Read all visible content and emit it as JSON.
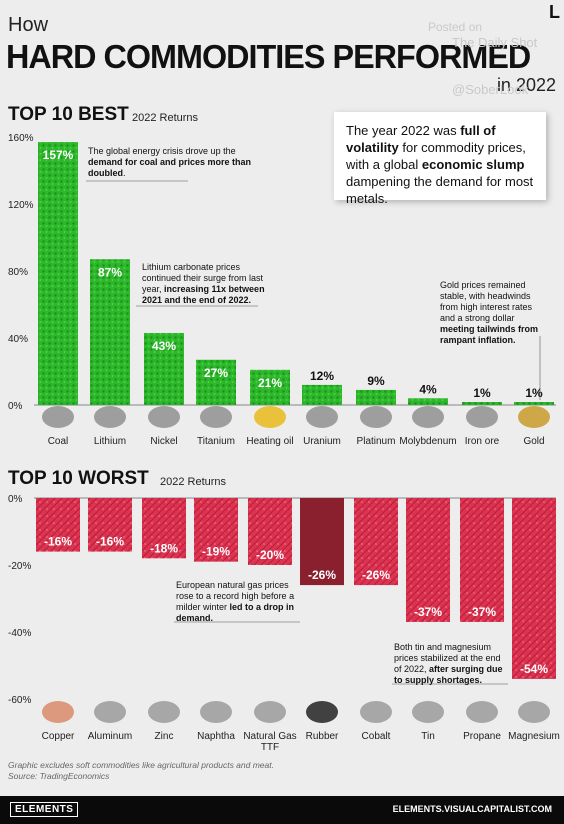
{
  "header": {
    "how": "How",
    "title": "HARD COMMODITIES PERFORMED",
    "subtitle": "in 2022",
    "watermark_posted": "Posted on",
    "watermark_source": "The Daily Shot",
    "watermark_handle": "@SoberLook",
    "corner_mark": "L"
  },
  "callout": {
    "text_1": "The year 2022 was ",
    "bold_1": "full of volatility",
    "text_2": " for commodity prices, with a global ",
    "bold_2": "economic slump",
    "text_3": " dampening the demand for most metals."
  },
  "chart_data": [
    {
      "type": "bar",
      "title": "TOP 10 BEST",
      "subtitle": "2022 Returns",
      "categories": [
        "Coal",
        "Lithium",
        "Nickel",
        "Titanium",
        "Heating oil",
        "Uranium",
        "Platinum",
        "Molybdenum",
        "Iron ore",
        "Gold"
      ],
      "values": [
        157,
        87,
        43,
        27,
        21,
        12,
        9,
        4,
        1,
        1
      ],
      "value_labels": [
        "157%",
        "87%",
        "43%",
        "27%",
        "21%",
        "12%",
        "9%",
        "4%",
        "1%",
        "1%"
      ],
      "ylim": [
        0,
        160
      ],
      "yticks": [
        "0%",
        "40%",
        "80%",
        "120%",
        "160%"
      ],
      "color": "#2fbf2a",
      "grid": false
    },
    {
      "type": "bar",
      "title": "TOP 10 WORST",
      "subtitle": "2022 Returns",
      "categories": [
        "Copper",
        "Aluminum",
        "Zinc",
        "Naphtha",
        "Natural Gas TTF",
        "Rubber",
        "Cobalt",
        "Tin",
        "Propane",
        "Magnesium"
      ],
      "values": [
        -16,
        -16,
        -18,
        -19,
        -20,
        -26,
        -26,
        -37,
        -37,
        -54
      ],
      "value_labels": [
        "-16%",
        "-16%",
        "-18%",
        "-19%",
        "-20%",
        "-26%",
        "-26%",
        "-37%",
        "-37%",
        "-54%"
      ],
      "ylim": [
        -60,
        0
      ],
      "yticks": [
        "0%",
        "-20%",
        "-40%",
        "-60%"
      ],
      "color": "#e0344e",
      "grid": false
    }
  ],
  "notes": {
    "coal": {
      "text": "The global energy crisis drove up the ",
      "bold": "demand for coal and prices more than doubled",
      "tail": "."
    },
    "lithium": {
      "text": "Lithium carbonate prices continued their surge from last year, ",
      "bold": "increasing 11x between 2021 and the end of 2022.",
      "tail": ""
    },
    "gold": {
      "text": "Gold prices remained stable, with headwinds from high interest rates and a strong dollar ",
      "bold": "meeting tailwinds from rampant inflation.",
      "tail": ""
    },
    "gas": {
      "text": "European natural gas prices rose to a record high before a milder winter ",
      "bold": "led to a drop in demand.",
      "tail": ""
    },
    "tin": {
      "text": "Both tin and magnesium prices stabilized at the end of 2022, ",
      "bold": "after surging due to supply shortages.",
      "tail": ""
    }
  },
  "footnote": {
    "line1": "Graphic excludes soft commodities like agricultural products and meat.",
    "line2": "Source: TradingEconomics"
  },
  "footer": {
    "logo": "ELEMENTS",
    "url": "ELEMENTS.VISUALCAPITALIST.COM"
  }
}
